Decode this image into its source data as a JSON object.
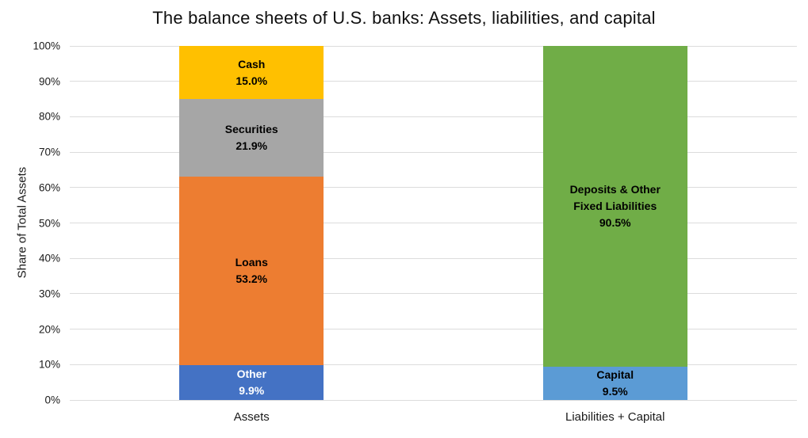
{
  "title": "The balance sheets of U.S. banks: Assets, liabilities, and capital",
  "ylabel": "Share of Total Assets",
  "chart_data": {
    "type": "bar",
    "stacked": true,
    "title": "The balance sheets of U.S. banks: Assets, liabilities, and capital",
    "xlabel": "",
    "ylabel": "Share of Total Assets",
    "ylim": [
      0,
      100
    ],
    "yticks": [
      "0%",
      "10%",
      "20%",
      "30%",
      "40%",
      "50%",
      "60%",
      "70%",
      "80%",
      "90%",
      "100%"
    ],
    "grid": true,
    "gridline_color": "#DCDCDC",
    "legend": "none",
    "categories": [
      "Assets",
      "Liabilities + Capital"
    ],
    "bars": [
      {
        "category": "Assets",
        "segments": [
          {
            "name": "Other",
            "value": 9.9,
            "color": "#4472C4",
            "text_color": "#FFFFFF",
            "label_lines": [
              "Other",
              "9.9%"
            ]
          },
          {
            "name": "Loans",
            "value": 53.2,
            "color": "#ED7D31",
            "text_color": "#000000",
            "label_lines": [
              "Loans",
              "53.2%"
            ]
          },
          {
            "name": "Securities",
            "value": 21.9,
            "color": "#A6A6A6",
            "text_color": "#000000",
            "label_lines": [
              "Securities",
              "21.9%"
            ]
          },
          {
            "name": "Cash",
            "value": 15.0,
            "color": "#FFC000",
            "text_color": "#000000",
            "label_lines": [
              "Cash",
              "15.0%"
            ]
          }
        ]
      },
      {
        "category": "Liabilities + Capital",
        "segments": [
          {
            "name": "Capital",
            "value": 9.5,
            "color": "#5B9BD5",
            "text_color": "#000000",
            "label_lines": [
              "Capital",
              "9.5%"
            ]
          },
          {
            "name": "Deposits & Other Fixed Liabilities",
            "value": 90.5,
            "color": "#70AD47",
            "text_color": "#000000",
            "label_lines": [
              "Deposits & Other",
              "Fixed Liabilities",
              "90.5%"
            ]
          }
        ]
      }
    ]
  }
}
